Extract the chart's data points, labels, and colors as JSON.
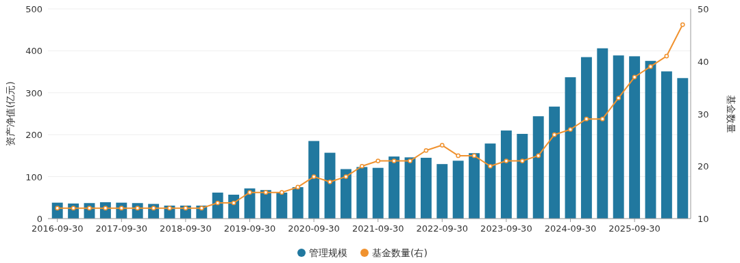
{
  "chart_data": {
    "type": "bar",
    "ylabel": "资产净值(亿元)",
    "y2label": "基金数量",
    "categories": [
      "2016-09-30",
      null,
      null,
      null,
      "2017-09-30",
      null,
      null,
      null,
      "2018-09-30",
      null,
      null,
      null,
      "2019-09-30",
      null,
      null,
      null,
      "2020-09-30",
      null,
      null,
      null,
      "2021-09-30",
      null,
      null,
      null,
      "2022-09-30",
      null,
      null,
      null,
      "2023-09-30",
      null,
      null,
      null,
      "2024-09-30",
      null,
      null,
      null,
      "2025-09-30",
      null,
      null,
      null
    ],
    "series": [
      {
        "name": "管理规模",
        "color": "#21789f",
        "values": [
          38,
          36,
          37,
          39,
          38,
          37,
          35,
          31,
          31,
          31,
          62,
          57,
          72,
          68,
          62,
          75,
          185,
          157,
          118,
          123,
          121,
          148,
          146,
          145,
          130,
          138,
          156,
          179,
          210,
          202,
          244,
          267,
          337,
          385,
          406,
          389,
          387,
          376,
          351,
          335
        ]
      },
      {
        "name": "基金数量(右)",
        "type": "line",
        "axis": "y2",
        "color": "#f0922f",
        "marker": "circle",
        "values": [
          12,
          12,
          12,
          12,
          12,
          12,
          12,
          12,
          12,
          12,
          13,
          13,
          15,
          15,
          15,
          16,
          18,
          17,
          18,
          20,
          21,
          21,
          21,
          23,
          24,
          22,
          22,
          20,
          21,
          21,
          22,
          26,
          27,
          29,
          29,
          33,
          37,
          39,
          41,
          47
        ]
      }
    ],
    "ylim": [
      0,
      500
    ],
    "yticks": [
      0,
      100,
      200,
      300,
      400,
      500
    ],
    "y2lim": [
      10,
      50
    ],
    "y2ticks": [
      10,
      20,
      30,
      40,
      50
    ],
    "grid": "y",
    "legend": "bottom"
  }
}
